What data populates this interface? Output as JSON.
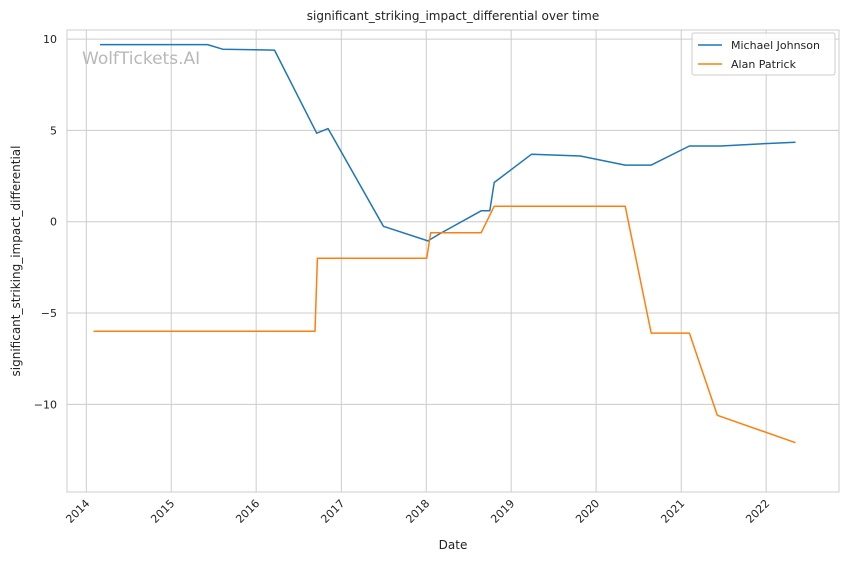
{
  "chart_data": {
    "type": "line",
    "title": "significant_striking_impact_differential over time",
    "xlabel": "Date",
    "ylabel": "significant_striking_impact_differential",
    "watermark": "WolfTickets.AI",
    "grid": true,
    "legend_position": "top-right",
    "xlim": [
      "2013-10-10",
      "2022-11-10"
    ],
    "ylim": [
      -14.8,
      10.5
    ],
    "x_ticks": [
      "2014",
      "2015",
      "2016",
      "2017",
      "2018",
      "2019",
      "2020",
      "2021",
      "2022"
    ],
    "y_ticks": [
      10,
      5,
      0,
      -5,
      -10
    ],
    "series": [
      {
        "name": "Michael Johnson",
        "color": "#1f77b4",
        "points": [
          [
            "2014-03-01",
            9.7
          ],
          [
            "2015-06-06",
            9.7
          ],
          [
            "2015-08-10",
            9.45
          ],
          [
            "2016-03-20",
            9.4
          ],
          [
            "2016-09-17",
            4.85
          ],
          [
            "2016-11-05",
            5.1
          ],
          [
            "2017-07-01",
            -0.25
          ],
          [
            "2018-01-08",
            -1.05
          ],
          [
            "2018-03-01",
            -0.65
          ],
          [
            "2018-08-25",
            0.6
          ],
          [
            "2018-10-01",
            0.6
          ],
          [
            "2018-10-20",
            2.15
          ],
          [
            "2019-03-30",
            3.7
          ],
          [
            "2019-10-25",
            3.6
          ],
          [
            "2020-05-05",
            3.1
          ],
          [
            "2020-08-25",
            3.1
          ],
          [
            "2021-02-05",
            4.15
          ],
          [
            "2021-06-20",
            4.15
          ],
          [
            "2022-02-01",
            4.3
          ],
          [
            "2022-05-07",
            4.35
          ]
        ]
      },
      {
        "name": "Alan Patrick",
        "color": "#ff7f0e",
        "points": [
          [
            "2014-02-01",
            -6.0
          ],
          [
            "2016-09-10",
            -6.0
          ],
          [
            "2016-09-20",
            -2.0
          ],
          [
            "2018-01-03",
            -2.0
          ],
          [
            "2018-01-20",
            -0.6
          ],
          [
            "2018-08-25",
            -0.6
          ],
          [
            "2018-10-20",
            0.85
          ],
          [
            "2020-05-05",
            0.85
          ],
          [
            "2020-08-25",
            -6.1
          ],
          [
            "2021-02-05",
            -6.1
          ],
          [
            "2021-06-05",
            -10.6
          ],
          [
            "2022-05-07",
            -12.1
          ]
        ]
      }
    ]
  }
}
